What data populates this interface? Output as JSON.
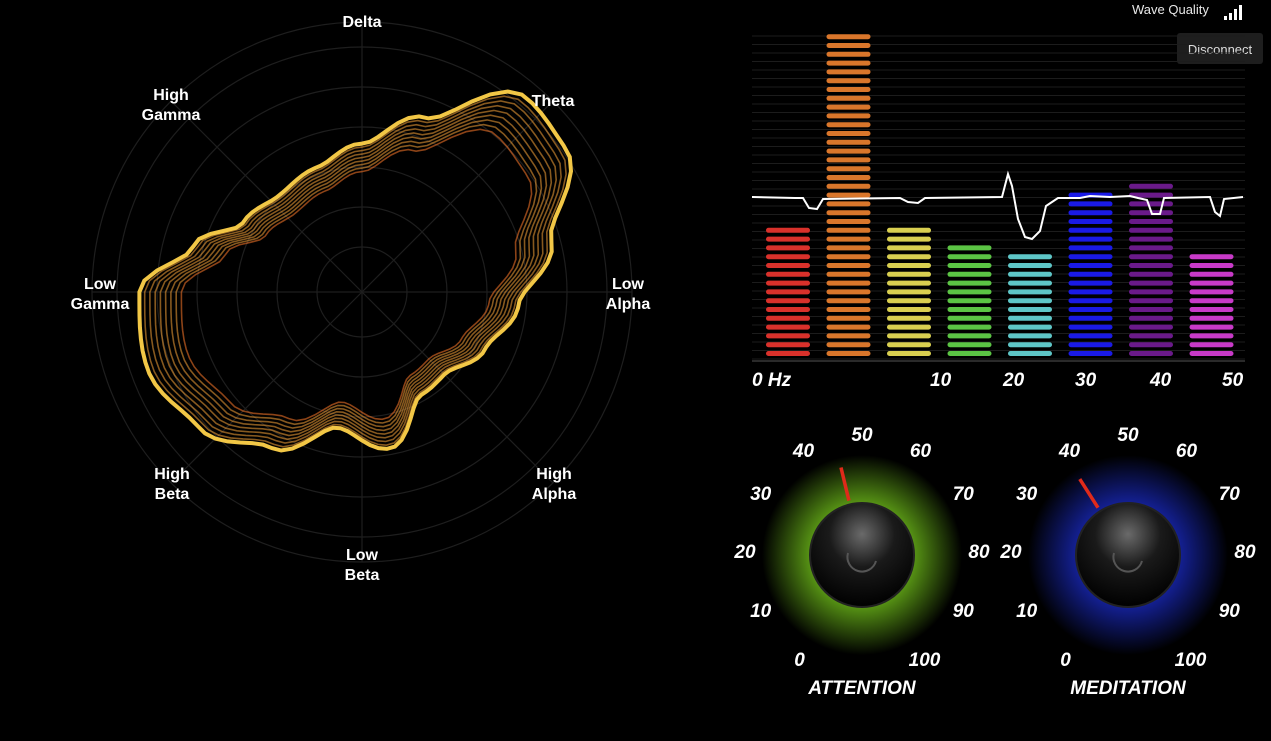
{
  "header": {
    "wave_quality_label": "Wave Quality",
    "signal_icon": "signal-bars-icon",
    "disconnect_label": "Disconnect"
  },
  "radar": {
    "band_labels": [
      "Delta",
      "Theta",
      "Low\nAlpha",
      "High\nAlpha",
      "Low\nBeta",
      "High\nBeta",
      "Low\nGamma",
      "High\nGamma"
    ],
    "colors": {
      "inner": "#ff7a2a",
      "outer": "#ffd24a"
    }
  },
  "spectrum": {
    "axis_labels": [
      "0 Hz",
      "10",
      "20",
      "30",
      "40",
      "50"
    ],
    "bar_levels": [
      0.41,
      1.0,
      0.41,
      0.36,
      0.33,
      0.52,
      0.55,
      0.33
    ],
    "bar_colors": [
      "#d9312b",
      "#d9762b",
      "#d9cf50",
      "#5bc444",
      "#5ec6c7",
      "#1a1ae6",
      "#6a1a8a",
      "#c83ac8"
    ]
  },
  "dials": [
    {
      "title": "ATTENTION",
      "value": 45,
      "glow_color": "#7fd81e",
      "ticks": [
        "0",
        "10",
        "20",
        "30",
        "40",
        "50",
        "60",
        "70",
        "80",
        "90",
        "100"
      ]
    },
    {
      "title": "MEDITATION",
      "value": 38,
      "glow_color": "#1d2fd8",
      "ticks": [
        "0",
        "10",
        "20",
        "30",
        "40",
        "50",
        "60",
        "70",
        "80",
        "90",
        "100"
      ]
    }
  ]
}
